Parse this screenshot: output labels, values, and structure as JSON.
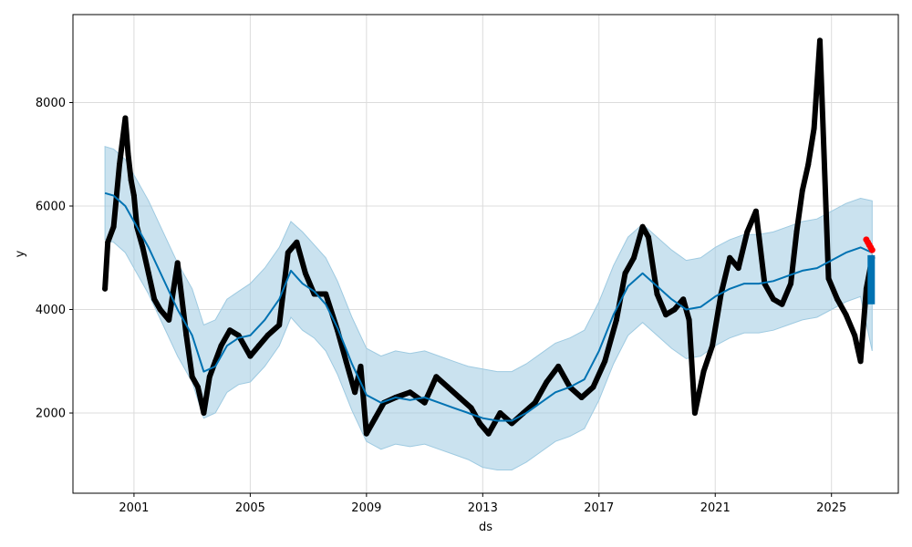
{
  "chart_data": {
    "type": "line",
    "title": "",
    "xlabel": "ds",
    "ylabel": "y",
    "xlim": [
      1998.9,
      2027.3
    ],
    "ylim": [
      450,
      9700
    ],
    "x_ticks": [
      2001,
      2005,
      2009,
      2013,
      2017,
      2021,
      2025
    ],
    "x_tick_labels": [
      "2001",
      "2005",
      "2009",
      "2013",
      "2017",
      "2021",
      "2025"
    ],
    "y_ticks": [
      2000,
      4000,
      6000,
      8000
    ],
    "y_tick_labels": [
      "2000",
      "4000",
      "6000",
      "8000"
    ],
    "grid": true,
    "colors": {
      "observed": "#000000",
      "forecast_line": "#0072B2",
      "uncertainty_band": "#9ecae1",
      "recent_points": "#ff0000"
    },
    "series": [
      {
        "kind": "observed-points",
        "x": [
          2000.0,
          2000.1,
          2000.3,
          2000.5,
          2000.7,
          2000.8,
          2000.9,
          2001.0,
          2001.1,
          2001.3,
          2001.5,
          2001.7,
          2001.9,
          2002.2,
          2002.5,
          2002.8,
          2003.0,
          2003.2,
          2003.4,
          2003.6,
          2003.8,
          2004.0,
          2004.3,
          2004.6,
          2005.0,
          2005.3,
          2005.6,
          2006.0,
          2006.3,
          2006.6,
          2006.9,
          2007.2,
          2007.6,
          2008.0,
          2008.3,
          2008.6,
          2008.8,
          2009.0,
          2009.3,
          2009.6,
          2010.0,
          2010.5,
          2011.0,
          2011.4,
          2011.8,
          2012.2,
          2012.6,
          2012.9,
          2013.2,
          2013.6,
          2014.0,
          2014.4,
          2014.8,
          2015.2,
          2015.6,
          2016.0,
          2016.4,
          2016.8,
          2017.2,
          2017.6,
          2017.9,
          2018.2,
          2018.5,
          2018.7,
          2019.0,
          2019.3,
          2019.6,
          2019.9,
          2020.1,
          2020.3,
          2020.6,
          2020.9,
          2021.2,
          2021.5,
          2021.8,
          2022.1,
          2022.4,
          2022.7,
          2023.0,
          2023.3,
          2023.6,
          2023.8,
          2024.0,
          2024.2,
          2024.4,
          2024.6,
          2024.9,
          2025.2,
          2025.5,
          2025.8,
          2026.0,
          2026.2,
          2026.4
        ],
        "values": [
          4400,
          5300,
          5600,
          6800,
          7700,
          7000,
          6500,
          6200,
          5600,
          5200,
          4700,
          4200,
          4000,
          3800,
          4900,
          3500,
          2700,
          2500,
          2000,
          2700,
          3000,
          3300,
          3600,
          3500,
          3100,
          3300,
          3500,
          3700,
          5100,
          5300,
          4700,
          4300,
          4300,
          3600,
          3000,
          2400,
          2900,
          1600,
          1900,
          2200,
          2300,
          2400,
          2200,
          2700,
          2500,
          2300,
          2100,
          1800,
          1600,
          2000,
          1800,
          2000,
          2200,
          2600,
          2900,
          2500,
          2300,
          2500,
          3000,
          3800,
          4700,
          5000,
          5600,
          5400,
          4300,
          3900,
          4000,
          4200,
          3800,
          2000,
          2800,
          3300,
          4300,
          5000,
          4800,
          5500,
          5900,
          4500,
          4200,
          4100,
          4500,
          5500,
          6300,
          6800,
          7500,
          9200,
          4600,
          4200,
          3900,
          3500,
          3000,
          4400,
          5000
        ]
      },
      {
        "kind": "forecast-line",
        "x": [
          2000.0,
          2000.3,
          2000.7,
          2001.0,
          2001.5,
          2002.0,
          2002.5,
          2003.0,
          2003.4,
          2003.8,
          2004.2,
          2004.6,
          2005.0,
          2005.5,
          2006.0,
          2006.4,
          2006.8,
          2007.2,
          2007.6,
          2008.0,
          2008.5,
          2009.0,
          2009.5,
          2010.0,
          2010.5,
          2011.0,
          2011.5,
          2012.0,
          2012.5,
          2013.0,
          2013.5,
          2014.0,
          2014.5,
          2015.0,
          2015.5,
          2016.0,
          2016.5,
          2017.0,
          2017.5,
          2018.0,
          2018.5,
          2019.0,
          2019.5,
          2020.0,
          2020.5,
          2021.0,
          2021.5,
          2022.0,
          2022.5,
          2023.0,
          2023.5,
          2024.0,
          2024.5,
          2025.0,
          2025.5,
          2026.0,
          2026.4
        ],
        "values": [
          6250,
          6200,
          6000,
          5700,
          5200,
          4600,
          4000,
          3500,
          2800,
          2900,
          3300,
          3450,
          3500,
          3800,
          4200,
          4750,
          4500,
          4350,
          4100,
          3650,
          2950,
          2350,
          2200,
          2300,
          2250,
          2300,
          2200,
          2100,
          2000,
          1900,
          1850,
          1850,
          2000,
          2200,
          2400,
          2500,
          2650,
          3200,
          3900,
          4450,
          4700,
          4450,
          4200,
          4000,
          4050,
          4250,
          4400,
          4500,
          4500,
          4550,
          4650,
          4750,
          4800,
          4950,
          5100,
          5200,
          5100
        ]
      },
      {
        "kind": "uncertainty-band",
        "x": [
          2000.0,
          2000.3,
          2000.7,
          2001.0,
          2001.5,
          2002.0,
          2002.5,
          2003.0,
          2003.4,
          2003.8,
          2004.2,
          2004.6,
          2005.0,
          2005.5,
          2006.0,
          2006.4,
          2006.8,
          2007.2,
          2007.6,
          2008.0,
          2008.5,
          2009.0,
          2009.5,
          2010.0,
          2010.5,
          2011.0,
          2011.5,
          2012.0,
          2012.5,
          2013.0,
          2013.5,
          2014.0,
          2014.5,
          2015.0,
          2015.5,
          2016.0,
          2016.5,
          2017.0,
          2017.5,
          2018.0,
          2018.5,
          2019.0,
          2019.5,
          2020.0,
          2020.5,
          2021.0,
          2021.5,
          2022.0,
          2022.5,
          2023.0,
          2023.5,
          2024.0,
          2024.5,
          2025.0,
          2025.5,
          2026.0,
          2026.4
        ],
        "upper": [
          7150,
          7100,
          6900,
          6600,
          6100,
          5500,
          4900,
          4400,
          3700,
          3800,
          4200,
          4350,
          4500,
          4800,
          5200,
          5700,
          5500,
          5250,
          5000,
          4550,
          3850,
          3250,
          3100,
          3200,
          3150,
          3200,
          3100,
          3000,
          2900,
          2850,
          2800,
          2800,
          2950,
          3150,
          3350,
          3450,
          3600,
          4150,
          4850,
          5400,
          5650,
          5400,
          5150,
          4950,
          5000,
          5200,
          5350,
          5450,
          5450,
          5500,
          5600,
          5700,
          5750,
          5900,
          6050,
          6150,
          6100
        ],
        "lower": [
          5350,
          5300,
          5100,
          4800,
          4300,
          3700,
          3100,
          2600,
          1900,
          2000,
          2400,
          2550,
          2600,
          2900,
          3300,
          3850,
          3600,
          3450,
          3200,
          2750,
          2050,
          1450,
          1300,
          1400,
          1350,
          1400,
          1300,
          1200,
          1100,
          950,
          900,
          900,
          1050,
          1250,
          1450,
          1550,
          1700,
          2250,
          2950,
          3500,
          3750,
          3500,
          3250,
          3050,
          3100,
          3300,
          3450,
          3550,
          3550,
          3600,
          3700,
          3800,
          3850,
          4000,
          4150,
          4250,
          3200
        ]
      },
      {
        "kind": "recent-points",
        "x": [
          2026.2,
          2026.25,
          2026.3,
          2026.35,
          2026.4
        ],
        "values": [
          5350,
          5300,
          5250,
          5200,
          5150
        ]
      }
    ]
  }
}
